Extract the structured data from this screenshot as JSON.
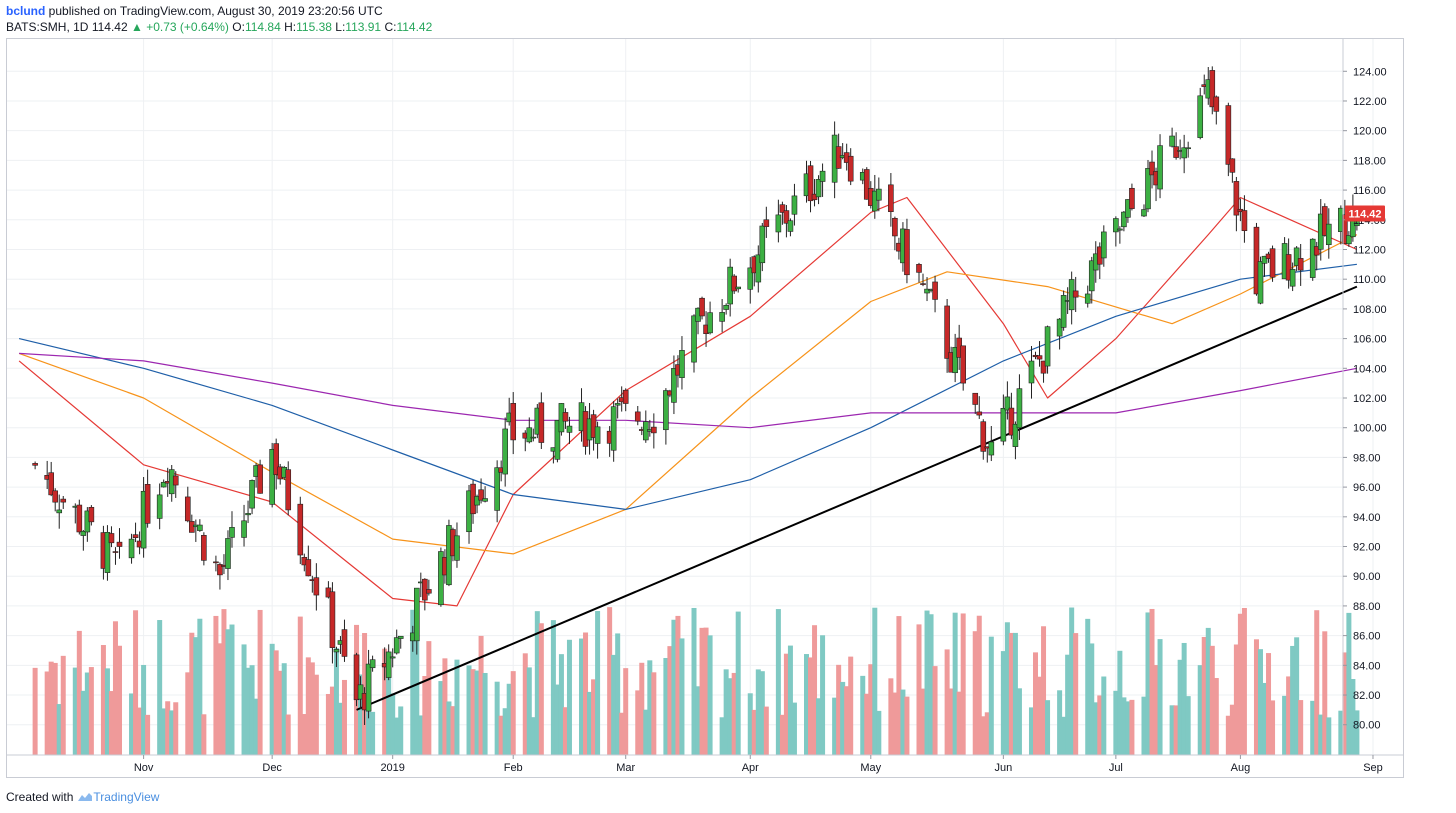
{
  "header": {
    "author": "bclund",
    "published": "published on TradingView.com, August 30, 2019 23:20:56 UTC",
    "symbol": "BATS:SMH, 1D",
    "last": "114.42",
    "arrow_icon": "triangle-up-icon",
    "change": "+0.73 (+0.64%)",
    "o_label": "O:",
    "o_value": "114.84",
    "h_label": "H:",
    "h_value": "115.38",
    "l_label": "L:",
    "l_value": "113.91",
    "c_label": "C:",
    "c_value": "114.42"
  },
  "footer": {
    "created_with": "Created with",
    "brand": "TradingView",
    "brand_icon": "tradingview-logo-icon"
  },
  "colors": {
    "up": "#26a69a",
    "up_body": "#3cb043",
    "down": "#c62828",
    "volume_up": "#7fc9c3",
    "volume_down": "#ef9a9a",
    "ma_red": "#e53935",
    "ma_orange": "#f7931a",
    "ma_blue": "#1f5fa8",
    "ma_purple": "#9c27b0",
    "trendline": "#000000",
    "price_tag": "#e53935"
  },
  "chart_data": {
    "type": "candlestick",
    "symbol": "BATS:SMH",
    "interval": "1D",
    "y_axis_ticks": [
      "124.00",
      "122.00",
      "120.00",
      "118.00",
      "116.00",
      "114.00",
      "112.00",
      "110.00",
      "108.00",
      "106.00",
      "104.00",
      "102.00",
      "100.00",
      "98.00",
      "96.00",
      "94.00",
      "92.00",
      "90.00",
      "88.00",
      "86.00",
      "84.00",
      "82.00",
      "80.00"
    ],
    "ylim": [
      78.5,
      125.5
    ],
    "x_axis_labels": [
      {
        "label": "Nov",
        "date": "2018-11-01"
      },
      {
        "label": "Dec",
        "date": "2018-12-03"
      },
      {
        "label": "2019",
        "date": "2019-01-02"
      },
      {
        "label": "Feb",
        "date": "2019-02-01"
      },
      {
        "label": "Mar",
        "date": "2019-03-01"
      },
      {
        "label": "Apr",
        "date": "2019-04-01"
      },
      {
        "label": "May",
        "date": "2019-05-01"
      },
      {
        "label": "Jun",
        "date": "2019-06-03"
      },
      {
        "label": "Jul",
        "date": "2019-07-01"
      },
      {
        "label": "Aug",
        "date": "2019-08-01"
      },
      {
        "label": "Sep",
        "date": "2019-09-03"
      }
    ],
    "last_price_label": "114.42",
    "key_closes": [
      {
        "date": "2018-10-05",
        "close": 97.5
      },
      {
        "date": "2018-10-26",
        "close": 90.5
      },
      {
        "date": "2018-11-07",
        "close": 97.8
      },
      {
        "date": "2018-11-20",
        "close": 90.0
      },
      {
        "date": "2018-12-03",
        "close": 98.5
      },
      {
        "date": "2018-12-24",
        "close": 81.5
      },
      {
        "date": "2019-01-04",
        "close": 86.0
      },
      {
        "date": "2019-01-31",
        "close": 99.5
      },
      {
        "date": "2019-03-08",
        "close": 101.0
      },
      {
        "date": "2019-03-21",
        "close": 107.5
      },
      {
        "date": "2019-04-24",
        "close": 119.0
      },
      {
        "date": "2019-05-13",
        "close": 110.0
      },
      {
        "date": "2019-05-31",
        "close": 98.5
      },
      {
        "date": "2019-06-20",
        "close": 108.5
      },
      {
        "date": "2019-07-24",
        "close": 122.5
      },
      {
        "date": "2019-08-05",
        "close": 110.0
      },
      {
        "date": "2019-08-30",
        "close": 114.42
      }
    ],
    "moving_averages": [
      {
        "color": "#e53935",
        "points": [
          [
            "2018-10-01",
            104.5
          ],
          [
            "2018-11-01",
            97.5
          ],
          [
            "2018-12-03",
            95.0
          ],
          [
            "2019-01-02",
            88.5
          ],
          [
            "2019-01-18",
            88.0
          ],
          [
            "2019-02-01",
            95.5
          ],
          [
            "2019-03-01",
            102.5
          ],
          [
            "2019-04-01",
            107.5
          ],
          [
            "2019-05-01",
            114.5
          ],
          [
            "2019-05-10",
            115.5
          ],
          [
            "2019-06-03",
            107.0
          ],
          [
            "2019-06-14",
            102.0
          ],
          [
            "2019-07-01",
            106.0
          ],
          [
            "2019-07-24",
            113.0
          ],
          [
            "2019-08-01",
            115.5
          ],
          [
            "2019-08-30",
            112.0
          ]
        ]
      },
      {
        "color": "#f7931a",
        "points": [
          [
            "2018-10-01",
            105.0
          ],
          [
            "2018-11-01",
            102.0
          ],
          [
            "2018-12-03",
            97.0
          ],
          [
            "2019-01-02",
            92.5
          ],
          [
            "2019-02-01",
            91.5
          ],
          [
            "2019-03-01",
            94.5
          ],
          [
            "2019-04-01",
            102.0
          ],
          [
            "2019-05-01",
            108.5
          ],
          [
            "2019-05-20",
            110.5
          ],
          [
            "2019-06-14",
            109.5
          ],
          [
            "2019-07-15",
            107.0
          ],
          [
            "2019-08-01",
            109.0
          ],
          [
            "2019-08-30",
            113.0
          ]
        ]
      },
      {
        "color": "#1f5fa8",
        "points": [
          [
            "2018-10-01",
            106.0
          ],
          [
            "2018-11-01",
            104.0
          ],
          [
            "2018-12-03",
            101.5
          ],
          [
            "2019-01-02",
            98.5
          ],
          [
            "2019-02-01",
            95.5
          ],
          [
            "2019-03-01",
            94.5
          ],
          [
            "2019-04-01",
            96.5
          ],
          [
            "2019-05-01",
            100.0
          ],
          [
            "2019-06-03",
            104.5
          ],
          [
            "2019-07-01",
            107.5
          ],
          [
            "2019-08-01",
            110.0
          ],
          [
            "2019-08-30",
            111.0
          ]
        ]
      },
      {
        "color": "#9c27b0",
        "points": [
          [
            "2018-10-01",
            105.0
          ],
          [
            "2018-11-01",
            104.5
          ],
          [
            "2018-12-03",
            103.0
          ],
          [
            "2019-01-02",
            101.5
          ],
          [
            "2019-02-01",
            100.5
          ],
          [
            "2019-03-01",
            100.5
          ],
          [
            "2019-04-01",
            100.0
          ],
          [
            "2019-05-01",
            101.0
          ],
          [
            "2019-06-03",
            101.0
          ],
          [
            "2019-07-01",
            101.0
          ],
          [
            "2019-08-01",
            102.5
          ],
          [
            "2019-08-30",
            104.0
          ]
        ]
      }
    ],
    "trendline": {
      "from": {
        "date": "2018-12-24",
        "price": 81.0
      },
      "to": {
        "date": "2019-08-30",
        "price": 109.5
      }
    },
    "volume": {
      "shown": true,
      "scale": "relative"
    }
  }
}
